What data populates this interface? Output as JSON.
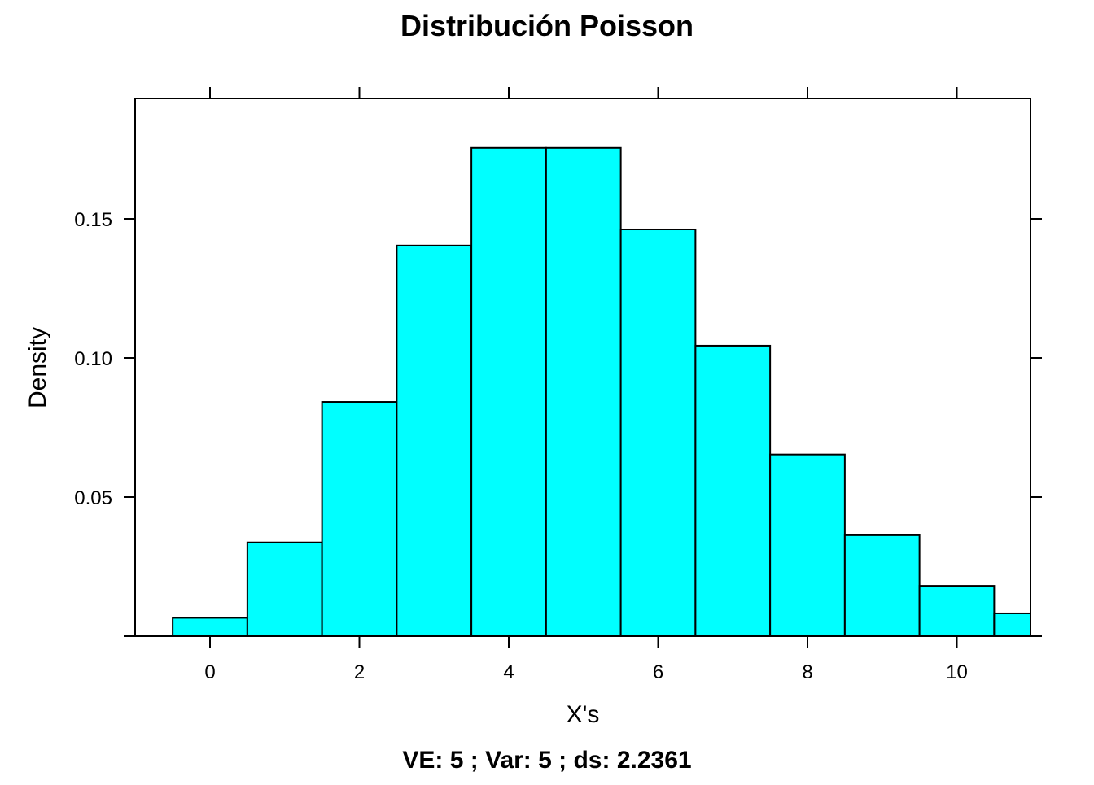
{
  "chart_data": {
    "type": "bar",
    "title": "Distribución Poisson",
    "subtitle": "VE: 5 ;  Var: 5 ;  ds: 2.2361",
    "xlabel": "X's",
    "ylabel": "Density",
    "xlim": [
      -1,
      11
    ],
    "ylim": [
      0,
      0.18
    ],
    "x_ticks": [
      0,
      2,
      4,
      6,
      8,
      10
    ],
    "y_ticks": [
      0.05,
      0.1,
      0.15
    ],
    "y_tick_labels": [
      "0.05",
      "0.10",
      "0.15"
    ],
    "grid": false,
    "legend": "none",
    "bar_color": "#00FFFF",
    "bar_edge_color": "#000000",
    "bins": [
      {
        "x0": -0.5,
        "x1": 0.5,
        "value": 0.0066
      },
      {
        "x0": 0.5,
        "x1": 1.5,
        "value": 0.0337
      },
      {
        "x0": 1.5,
        "x1": 2.5,
        "value": 0.0842
      },
      {
        "x0": 2.5,
        "x1": 3.5,
        "value": 0.1404
      },
      {
        "x0": 3.5,
        "x1": 4.5,
        "value": 0.1755
      },
      {
        "x0": 4.5,
        "x1": 5.5,
        "value": 0.1755
      },
      {
        "x0": 5.5,
        "x1": 6.5,
        "value": 0.1462
      },
      {
        "x0": 6.5,
        "x1": 7.5,
        "value": 0.1044
      },
      {
        "x0": 7.5,
        "x1": 8.5,
        "value": 0.0653
      },
      {
        "x0": 8.5,
        "x1": 9.5,
        "value": 0.0363
      },
      {
        "x0": 9.5,
        "x1": 10.5,
        "value": 0.0181
      },
      {
        "x0": 10.5,
        "x1": 11,
        "value": 0.0082
      }
    ]
  }
}
